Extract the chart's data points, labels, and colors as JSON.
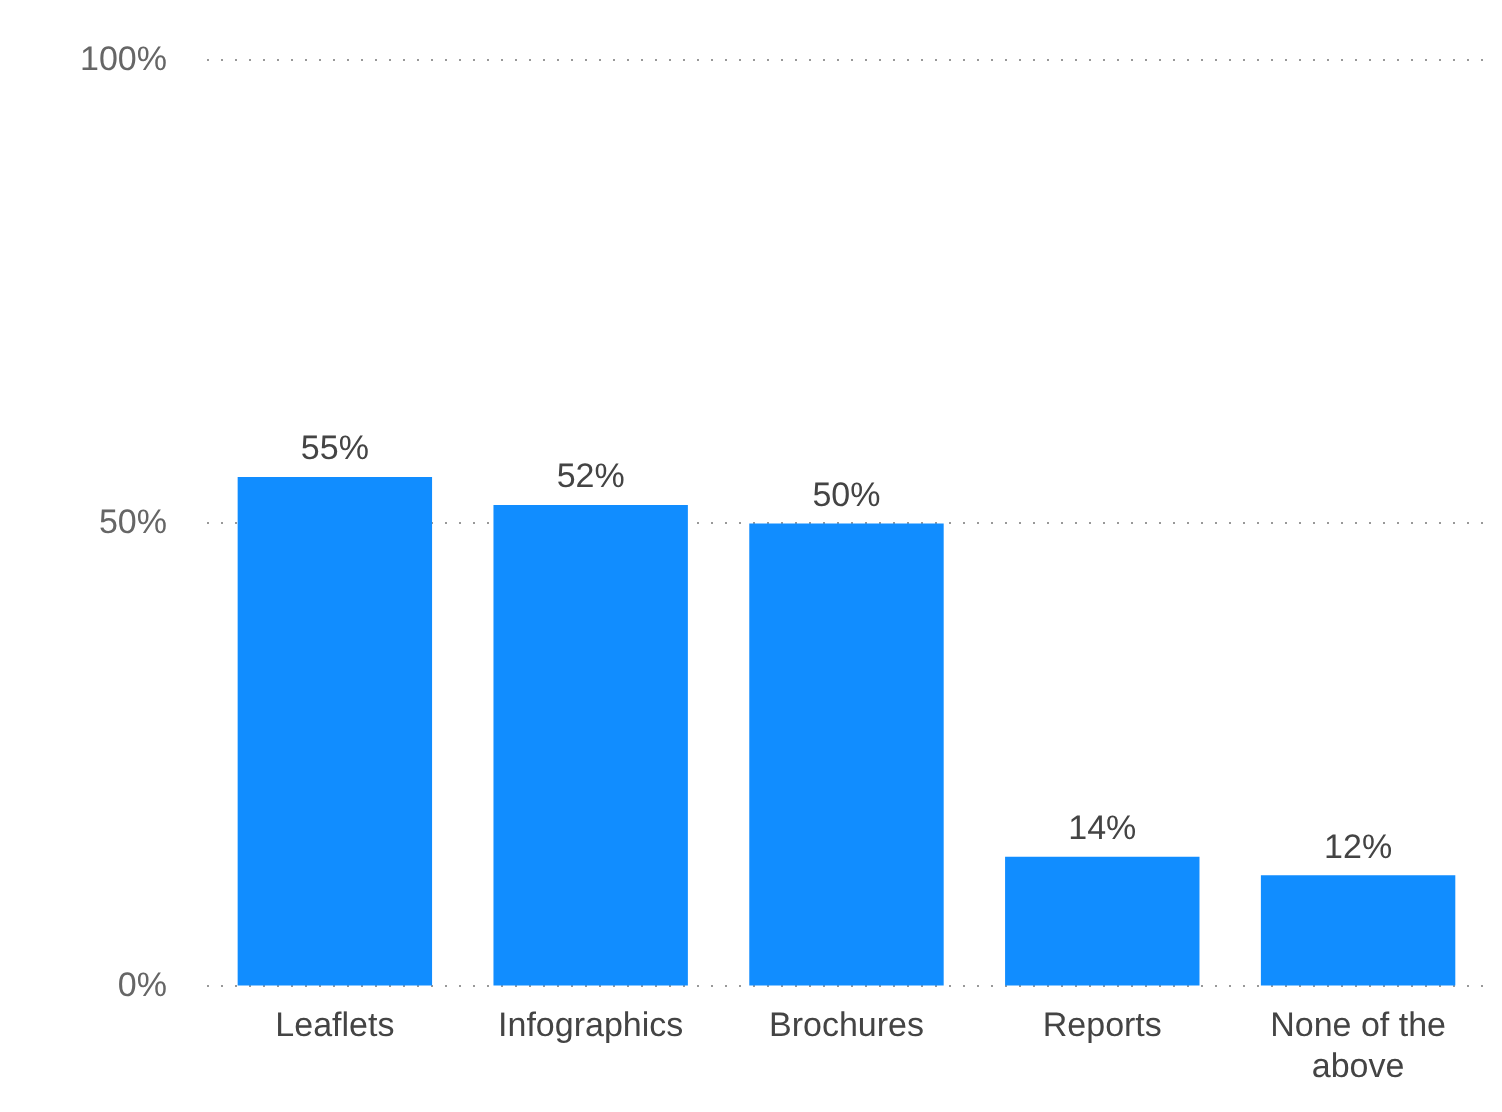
{
  "chart_data": {
    "type": "bar",
    "categories": [
      "Leaflets",
      "Infographics",
      "Brochures",
      "Reports",
      "None of the above"
    ],
    "values": [
      55,
      52,
      50,
      14,
      12
    ],
    "color": "#118dff",
    "ylim": [
      0,
      100
    ],
    "yticks": [
      {
        "value": 0,
        "label": "0%"
      },
      {
        "value": 50,
        "label": "50%"
      },
      {
        "value": 100,
        "label": "100%"
      }
    ],
    "grid": "y",
    "legend": false,
    "value_labels": [
      "55%",
      "52%",
      "50%",
      "14%",
      "12%"
    ]
  }
}
